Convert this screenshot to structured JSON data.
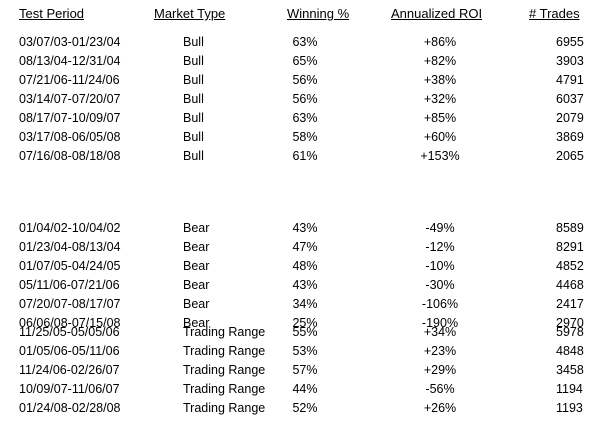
{
  "headers": {
    "period": "Test Period",
    "type": "Market Type",
    "win": "Winning %",
    "roi": "Annualized ROI",
    "trades": "# Trades"
  },
  "groups": [
    {
      "rows": [
        {
          "period": "03/07/03-01/23/04",
          "type": "Bull",
          "win": "63%",
          "roi": "+86%",
          "trades": "6955"
        },
        {
          "period": "08/13/04-12/31/04",
          "type": "Bull",
          "win": "65%",
          "roi": "+82%",
          "trades": "3903"
        },
        {
          "period": "07/21/06-11/24/06",
          "type": "Bull",
          "win": "56%",
          "roi": "+38%",
          "trades": "4791"
        },
        {
          "period": "03/14/07-07/20/07",
          "type": "Bull",
          "win": "56%",
          "roi": "+32%",
          "trades": "6037"
        },
        {
          "period": "08/17/07-10/09/07",
          "type": "Bull",
          "win": "63%",
          "roi": "+85%",
          "trades": "2079"
        },
        {
          "period": "03/17/08-06/05/08",
          "type": "Bull",
          "win": "58%",
          "roi": "+60%",
          "trades": "3869"
        },
        {
          "period": "07/16/08-08/18/08",
          "type": "Bull",
          "win": "61%",
          "roi": "+153%",
          "trades": "2065"
        }
      ]
    },
    {
      "rows": [
        {
          "period": "01/04/02-10/04/02",
          "type": "Bear",
          "win": "43%",
          "roi": "-49%",
          "trades": "8589"
        },
        {
          "period": "01/23/04-08/13/04",
          "type": "Bear",
          "win": "47%",
          "roi": "-12%",
          "trades": "8291"
        },
        {
          "period": "01/07/05-04/24/05",
          "type": "Bear",
          "win": "48%",
          "roi": "-10%",
          "trades": "4852"
        },
        {
          "period": "05/11/06-07/21/06",
          "type": "Bear",
          "win": "43%",
          "roi": "-30%",
          "trades": "4468"
        },
        {
          "period": "07/20/07-08/17/07",
          "type": "Bear",
          "win": "34%",
          "roi": "-106%",
          "trades": "2417"
        },
        {
          "period": "06/06/08-07/15/08",
          "type": "Bear",
          "win": "25%",
          "roi": "-190%",
          "trades": "2970"
        }
      ]
    },
    {
      "rows": [
        {
          "period": "11/25/05-05/05/06",
          "type": "Trading Range",
          "win": "55%",
          "roi": "+34%",
          "trades": "5978"
        },
        {
          "period": "01/05/06-05/11/06",
          "type": "Trading Range",
          "win": "53%",
          "roi": "+23%",
          "trades": "4848"
        },
        {
          "period": "11/24/06-02/26/07",
          "type": "Trading Range",
          "win": "57%",
          "roi": "+29%",
          "trades": "3458"
        },
        {
          "period": "10/09/07-11/06/07",
          "type": "Trading Range",
          "win": "44%",
          "roi": "-56%",
          "trades": "1194"
        },
        {
          "period": "01/24/08-02/28/08",
          "type": "Trading Range",
          "win": "52%",
          "roi": "+26%",
          "trades": "1193"
        }
      ]
    }
  ]
}
